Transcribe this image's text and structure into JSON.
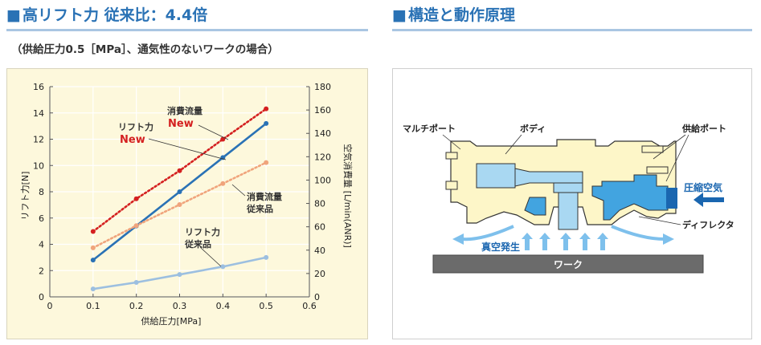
{
  "left_section": {
    "title": "高リフト力 従来比：4.4倍",
    "subtitle": "（供給圧力0.5［MPa］、通気性のないワークの場合）"
  },
  "right_section": {
    "title": "構造と動作原理"
  },
  "chart_data": {
    "type": "line",
    "title": "",
    "xlabel": "供給圧力[MPa]",
    "ylabel": "リフト力[N]",
    "y2label": "空気消費量 [L/min(ANR)]",
    "xlim": [
      0,
      0.6
    ],
    "ylim": [
      0,
      16
    ],
    "y2lim": [
      0,
      180
    ],
    "x_ticks": [
      0,
      0.1,
      0.2,
      0.3,
      0.4,
      0.5,
      0.6
    ],
    "y_ticks": [
      0,
      2,
      4,
      6,
      8,
      10,
      12,
      14,
      16
    ],
    "y2_ticks": [
      0,
      20,
      40,
      60,
      80,
      100,
      120,
      140,
      160,
      180
    ],
    "grid": true,
    "series": [
      {
        "name": "リフト力 New",
        "label_line1": "リフト力",
        "label_line2": "New",
        "axis": "left",
        "style": "solid",
        "color": "#2a72b5",
        "x": [
          0.1,
          0.2,
          0.3,
          0.4,
          0.5
        ],
        "values": [
          2.8,
          5.4,
          8.0,
          10.6,
          13.2
        ]
      },
      {
        "name": "消費流量 New",
        "label_line1": "消費流量",
        "label_line2": "New",
        "axis": "right",
        "style": "dotted",
        "color": "#d42020",
        "x": [
          0.1,
          0.2,
          0.3,
          0.4,
          0.5
        ],
        "values": [
          56,
          84,
          108,
          135,
          161
        ]
      },
      {
        "name": "消費流量 従来品",
        "label_line1": "消費流量",
        "label_line2": "従来品",
        "axis": "right",
        "style": "dotted",
        "color": "#f0a47c",
        "x": [
          0.1,
          0.2,
          0.3,
          0.4,
          0.5
        ],
        "values": [
          42,
          61,
          79,
          97,
          115
        ]
      },
      {
        "name": "リフト力 従来品",
        "label_line1": "リフト力",
        "label_line2": "従来品",
        "axis": "left",
        "style": "solid",
        "color": "#9cbfe0",
        "x": [
          0.1,
          0.2,
          0.3,
          0.4,
          0.5
        ],
        "values": [
          0.6,
          1.1,
          1.7,
          2.3,
          3.0
        ]
      }
    ]
  },
  "diagram": {
    "labels": {
      "multi_port": "マルチポート",
      "body": "ボディ",
      "supply_port": "供給ポート",
      "compressed_air": "圧縮空気",
      "deflector": "ディフレクタ",
      "vacuum": "真空発生",
      "work": "ワーク"
    },
    "colors": {
      "body": "#fdf6c8",
      "air": "#42a4e0",
      "air_light": "#a9d8f2",
      "work": "#6b6b6b"
    }
  }
}
